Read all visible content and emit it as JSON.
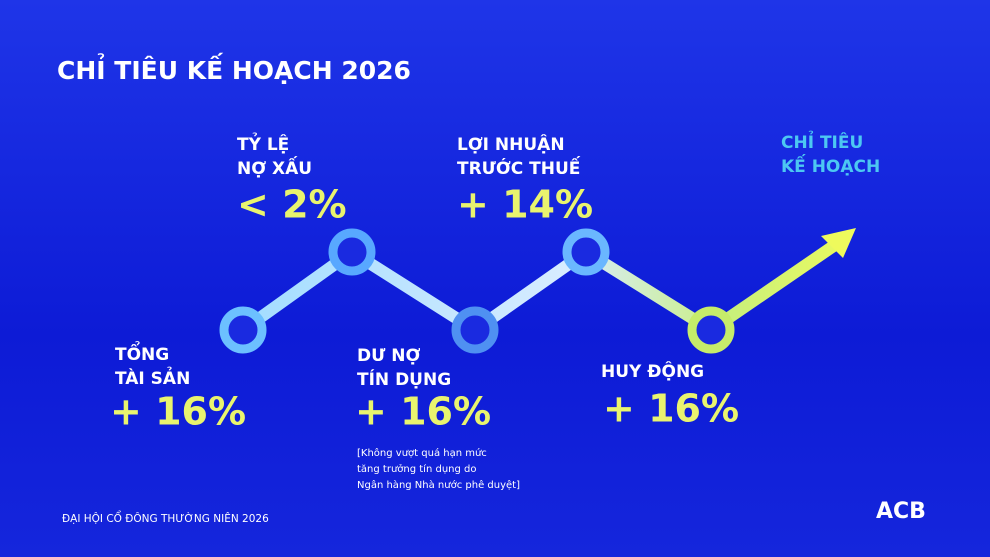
{
  "title": "CHỈ TIÊU KẾ HOẠCH 2026",
  "items": [
    {
      "label": [
        "TỔNG",
        "TÀI SẢN"
      ],
      "value": "+ 16%"
    },
    {
      "label": [
        "TỶ LỆ",
        "NỢ XẤU"
      ],
      "value": "< 2%"
    },
    {
      "label": [
        "DƯ NỢ",
        "TÍN DỤNG"
      ],
      "value": "+ 16%",
      "note": [
        "[Không vượt quá hạn mức",
        "tăng trưởng tín dụng do",
        "Ngân hàng Nhà nước phê duyệt]"
      ]
    },
    {
      "label": [
        "LỢI NHUẬN",
        "TRƯỚC THUẾ"
      ],
      "value": "+ 14%"
    },
    {
      "label": [
        "HUY ĐỘNG"
      ],
      "value": "+ 16%"
    }
  ],
  "arrow_label": [
    "CHỈ TIÊU",
    "KẾ HOẠCH"
  ],
  "footer": "ĐẠI HỘI CỔ ĐÔNG THƯỜNG NIÊN 2026",
  "logo": "ACB"
}
